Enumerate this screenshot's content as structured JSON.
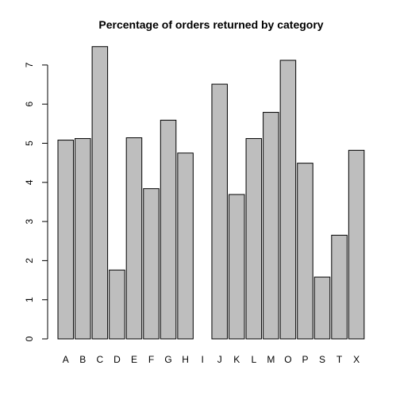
{
  "chart_data": {
    "type": "bar",
    "title": "Percentage of orders returned by category",
    "xlabel": "",
    "ylabel": "",
    "categories": [
      "A",
      "B",
      "C",
      "D",
      "E",
      "F",
      "G",
      "H",
      "I",
      "J",
      "K",
      "L",
      "M",
      "O",
      "P",
      "S",
      "T",
      "X"
    ],
    "values": [
      5.08,
      5.12,
      7.47,
      1.76,
      5.14,
      3.84,
      5.59,
      4.75,
      0.0,
      6.51,
      3.69,
      5.12,
      5.79,
      7.12,
      4.49,
      1.58,
      2.65,
      4.82
    ],
    "ylim": [
      0,
      7.5
    ],
    "yticks": [
      "0",
      "1",
      "2",
      "3",
      "4",
      "5",
      "6",
      "7"
    ],
    "grid": false,
    "bar_color": "#bebebe",
    "bar_stroke": "#000000"
  }
}
